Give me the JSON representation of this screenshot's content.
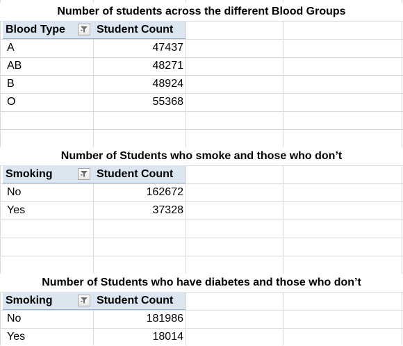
{
  "tables": [
    {
      "title": "Number of students across the different Blood Groups",
      "col1_header": "Blood Type",
      "col2_header": "Student Count",
      "rows": [
        {
          "label": "A",
          "value": "47437"
        },
        {
          "label": "AB",
          "value": "48271"
        },
        {
          "label": "B",
          "value": "48924"
        },
        {
          "label": "O",
          "value": "55368"
        }
      ]
    },
    {
      "title": "Number of Students who smoke and those who don’t",
      "col1_header": "Smoking",
      "col2_header": "Student Count",
      "rows": [
        {
          "label": "No",
          "value": "162672"
        },
        {
          "label": "Yes",
          "value": "37328"
        }
      ]
    },
    {
      "title": "Number of Students who have diabetes and those who don’t",
      "col1_header": "Smoking",
      "col2_header": "Student Count",
      "rows": [
        {
          "label": "No",
          "value": "181986"
        },
        {
          "label": "Yes",
          "value": "18014"
        }
      ]
    }
  ],
  "icons": {
    "filter": "filter-dropdown-icon"
  },
  "colors": {
    "header_bg": "#dce6f1",
    "header_border": "#95b3d7",
    "gridline": "#d9d9d9"
  }
}
